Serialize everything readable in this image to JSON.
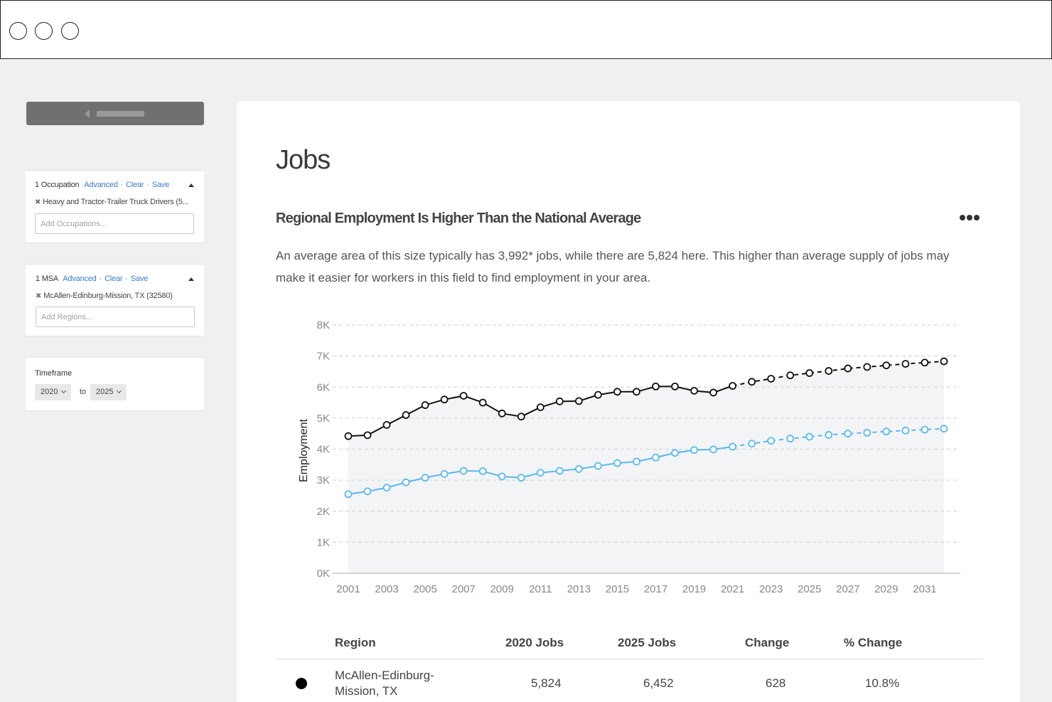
{
  "sidebar": {
    "occupation_filter": {
      "count_label": "1 Occupation",
      "advanced_label": "Advanced",
      "clear_label": "Clear",
      "save_label": "Save",
      "chip": "Heavy and Tractor-Trailer Truck Drivers (5...",
      "placeholder": "Add Occupations..."
    },
    "region_filter": {
      "count_label": "1 MSA",
      "advanced_label": "Advanced",
      "clear_label": "Clear",
      "save_label": "Save",
      "chip": "McAllen-Edinburg-Mission, TX (32580)",
      "placeholder": "Add Regions..."
    },
    "timeframe": {
      "label": "Timeframe",
      "from": "2020",
      "to_label": "to",
      "to": "2025"
    }
  },
  "main": {
    "title": "Jobs",
    "section_title": "Regional Employment Is Higher Than the National Average",
    "description": "An average area of this size typically has 3,992* jobs, while there are 5,824 here. This higher than average supply of jobs may make it easier for workers in this field to find employment in your area."
  },
  "chart_data": {
    "type": "line",
    "ylabel": "Employment",
    "xlabel": "",
    "ylim": [
      0,
      8000
    ],
    "yticks": [
      "0K",
      "1K",
      "2K",
      "3K",
      "4K",
      "5K",
      "6K",
      "7K",
      "8K"
    ],
    "xticks": [
      "2001",
      "2003",
      "2005",
      "2007",
      "2009",
      "2011",
      "2013",
      "2015",
      "2017",
      "2019",
      "2021",
      "2023",
      "2025",
      "2027",
      "2029",
      "2031"
    ],
    "x": [
      2001,
      2002,
      2003,
      2004,
      2005,
      2006,
      2007,
      2008,
      2009,
      2010,
      2011,
      2012,
      2013,
      2014,
      2015,
      2016,
      2017,
      2018,
      2019,
      2020,
      2021,
      2022,
      2023,
      2024,
      2025,
      2026,
      2027,
      2028,
      2029,
      2030,
      2031,
      2032
    ],
    "projection_start": 2021,
    "grid": true,
    "series": [
      {
        "color": "#111111",
        "values": [
          4420,
          4450,
          4780,
          5100,
          5420,
          5600,
          5720,
          5500,
          5150,
          5050,
          5350,
          5540,
          5550,
          5750,
          5850,
          5850,
          6020,
          6020,
          5880,
          5824,
          6040,
          6170,
          6270,
          6380,
          6452,
          6520,
          6600,
          6650,
          6700,
          6750,
          6790,
          6830
        ]
      },
      {
        "color": "#5bb8ec",
        "values": [
          2550,
          2640,
          2760,
          2930,
          3080,
          3200,
          3300,
          3290,
          3120,
          3080,
          3240,
          3300,
          3360,
          3460,
          3550,
          3600,
          3730,
          3880,
          3970,
          3990,
          4080,
          4180,
          4270,
          4340,
          4400,
          4460,
          4500,
          4530,
          4570,
          4600,
          4630,
          4660
        ]
      }
    ]
  },
  "table": {
    "headers": [
      "Region",
      "2020 Jobs",
      "2025 Jobs",
      "Change",
      "% Change"
    ],
    "rows": [
      {
        "region": "McAllen-Edinburg-Mission, TX",
        "jobs_2020": "5,824",
        "jobs_2025": "6,452",
        "change": "628",
        "pct_change": "10.8%"
      }
    ]
  }
}
